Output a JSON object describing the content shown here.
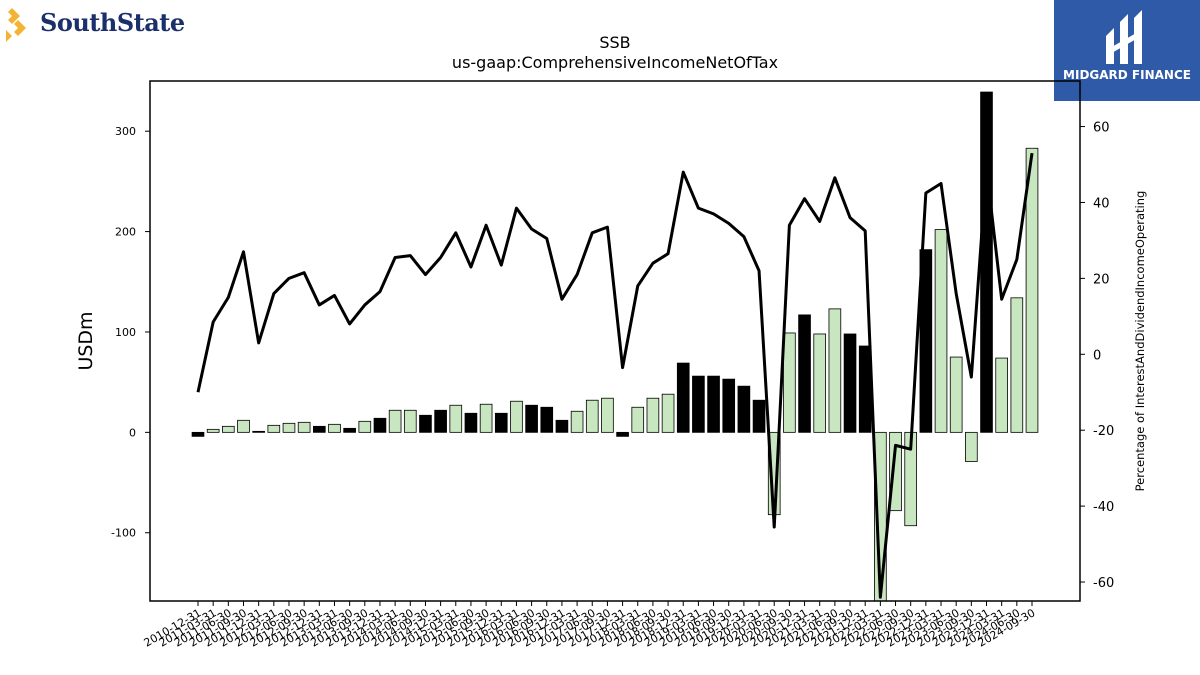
{
  "logos": {
    "left": {
      "text": "SouthState",
      "mark_color": "#f5b335",
      "text_color": "#1b2f6b"
    },
    "right": {
      "text": "MIDGARD FINANCE",
      "bg_color": "#2f5aa8"
    }
  },
  "chart_data": {
    "type": "bar",
    "title": "SSB",
    "subtitle": "us-gaap:ComprehensiveIncomeNetOfTax",
    "ylabel": "USDm",
    "y2label": "Percentage of InterestAndDividendIncomeOperating",
    "ylim": [
      -168,
      350
    ],
    "y2lim": [
      -65,
      72
    ],
    "yticks": [
      -100,
      0,
      100,
      200,
      300
    ],
    "y2ticks": [
      -60,
      -40,
      -20,
      0,
      20,
      40,
      60
    ],
    "grid": false,
    "bar_colors": {
      "positive_change": "#c8e6c0",
      "negative_change": "#000000"
    },
    "x_tick_labels": [
      "2010-12-31",
      "2011-03-31",
      "2011-06-30",
      "2011-09-30",
      "2011-12-31",
      "2012-03-31",
      "2012-06-30",
      "2012-09-30",
      "2012-12-31",
      "2013-03-31",
      "2013-06-30",
      "2013-09-30",
      "2013-12-31",
      "2014-03-31",
      "2014-06-30",
      "2014-09-30",
      "2014-12-31",
      "2015-03-31",
      "2015-06-30",
      "2015-09-30",
      "2015-12-31",
      "2016-03-31",
      "2016-06-30",
      "2016-09-30",
      "2016-12-31",
      "2017-03-31",
      "2017-06-30",
      "2017-09-30",
      "2017-12-31",
      "2018-03-31",
      "2018-06-30",
      "2018-09-30",
      "2018-12-31",
      "2019-03-31",
      "2019-06-30",
      "2019-09-30",
      "2019-12-31",
      "2020-03-31",
      "2020-06-30",
      "2020-09-30",
      "2020-12-31",
      "2021-03-31",
      "2021-06-30",
      "2021-09-30",
      "2021-12-31",
      "2022-03-31",
      "2022-06-30",
      "2022-09-30",
      "2022-12-31",
      "2023-03-31",
      "2023-06-30",
      "2023-09-30",
      "2023-12-31",
      "2024-03-31",
      "2024-06-30",
      "2024-09-30"
    ],
    "series": [
      {
        "type": "bar",
        "values": [
          -4,
          3,
          6,
          12,
          1,
          7,
          9,
          10,
          6,
          8,
          4,
          11,
          14,
          22,
          22,
          17,
          22,
          27,
          19,
          28,
          19,
          31,
          27,
          25,
          12,
          21,
          32,
          34,
          -4,
          25,
          34,
          38,
          69,
          56,
          56,
          53,
          46,
          32,
          -82,
          99,
          117,
          98,
          123,
          98,
          86,
          -168,
          -78,
          -93,
          182,
          202,
          75,
          -29,
          339,
          74,
          134,
          283
        ],
        "colors": [
          "black",
          "green",
          "green",
          "green",
          "black",
          "green",
          "green",
          "green",
          "black",
          "green",
          "black",
          "green",
          "black",
          "green",
          "green",
          "black",
          "black",
          "green",
          "black",
          "green",
          "black",
          "green",
          "black",
          "black",
          "black",
          "green",
          "green",
          "green",
          "black",
          "green",
          "green",
          "green",
          "black",
          "black",
          "black",
          "black",
          "black",
          "black",
          "green",
          "green",
          "black",
          "green",
          "green",
          "black",
          "black",
          "green",
          "green",
          "green",
          "black",
          "green",
          "green",
          "green",
          "black",
          "green",
          "green",
          "green"
        ]
      },
      {
        "type": "line",
        "axis": "right",
        "values": [
          -10,
          8.5,
          15,
          27,
          3,
          16,
          20,
          21.5,
          13,
          15.5,
          8,
          13,
          16.5,
          25.5,
          26,
          21,
          25.5,
          32,
          23,
          34,
          23.5,
          38.5,
          33,
          30.5,
          14.5,
          21,
          32,
          33.5,
          -3.5,
          18,
          24,
          26.5,
          48,
          38.5,
          37,
          34.5,
          31,
          22,
          -45.5,
          34,
          41,
          35,
          46.5,
          36,
          32.5,
          -64,
          -24,
          -25,
          42.5,
          45,
          16,
          -6,
          49,
          14.5,
          25,
          53
        ]
      }
    ]
  }
}
